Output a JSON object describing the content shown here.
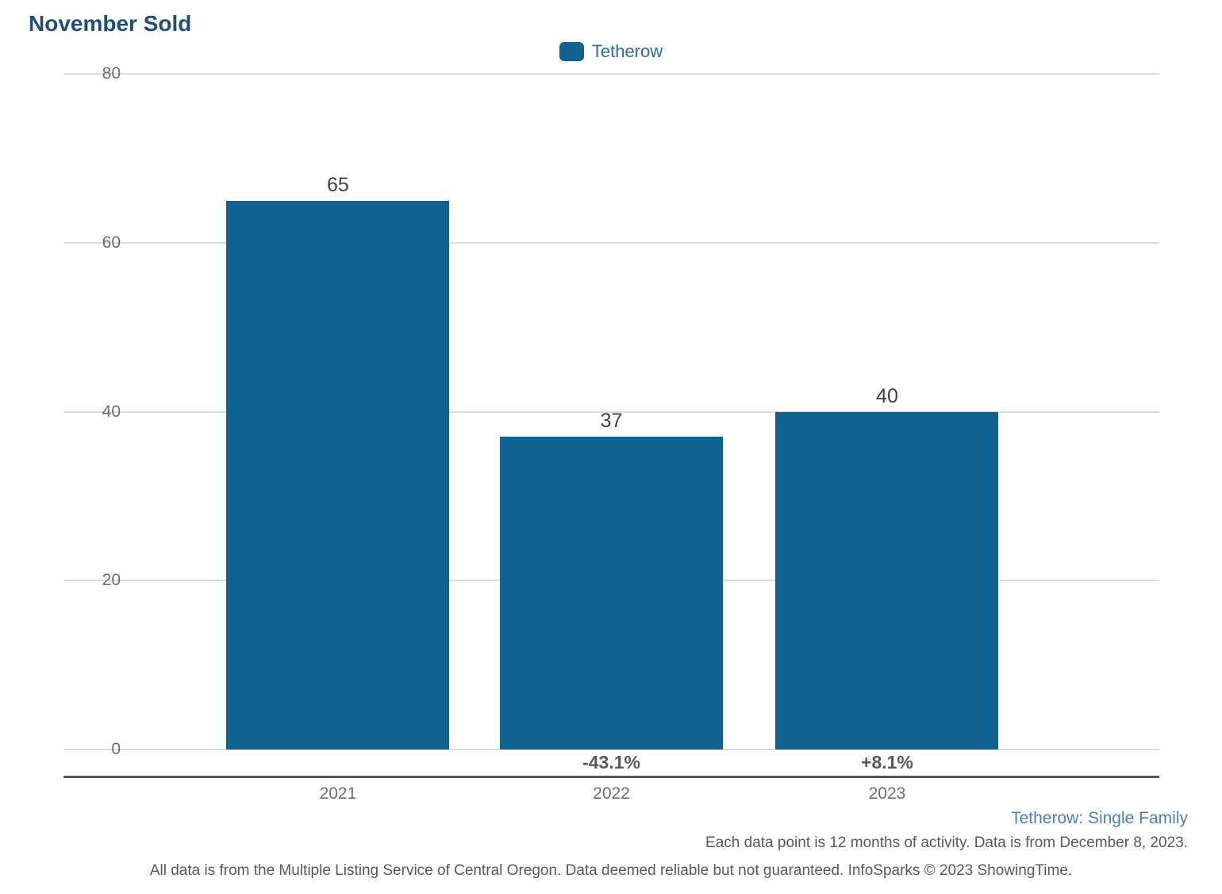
{
  "title": "November Sold",
  "legend": {
    "label": "Tetherow",
    "swatch_color": "#0f6390",
    "position": "top-center"
  },
  "chart_data": {
    "type": "bar",
    "title": "November Sold",
    "series_name": "Tetherow",
    "categories": [
      "2021",
      "2022",
      "2023"
    ],
    "values": [
      65,
      37,
      40
    ],
    "value_labels": [
      "65",
      "37",
      "40"
    ],
    "pct_change_labels": [
      "",
      "-43.1%",
      "+8.1%"
    ],
    "xlabel": "",
    "ylabel": "",
    "ylim": [
      0,
      80
    ],
    "yticks": [
      80,
      60,
      40,
      20,
      0
    ],
    "grid": "horizontal",
    "legend_position": "top-center",
    "bar_color": "#0f6390"
  },
  "footnotes": {
    "series_info": "Tetherow: Single Family",
    "data_note": "Each data point is 12 months of activity. Data is from December 8, 2023.",
    "disclaimer": "All data is from the Multiple Listing Service of Central Oregon. Data deemed reliable but not guaranteed. InfoSparks © 2023 ShowingTime."
  },
  "colors": {
    "title_text": "#1f4e79",
    "bar_fill": "#0f6390",
    "legend_text": "#2d6ca2",
    "axis_tick_text": "#6d6e71",
    "value_label_text": "#414042",
    "pct_label_text": "#58595b",
    "series_info_text": "#4a80b8",
    "axis_line": "#58595b",
    "gridline": "#dcdcdc"
  }
}
